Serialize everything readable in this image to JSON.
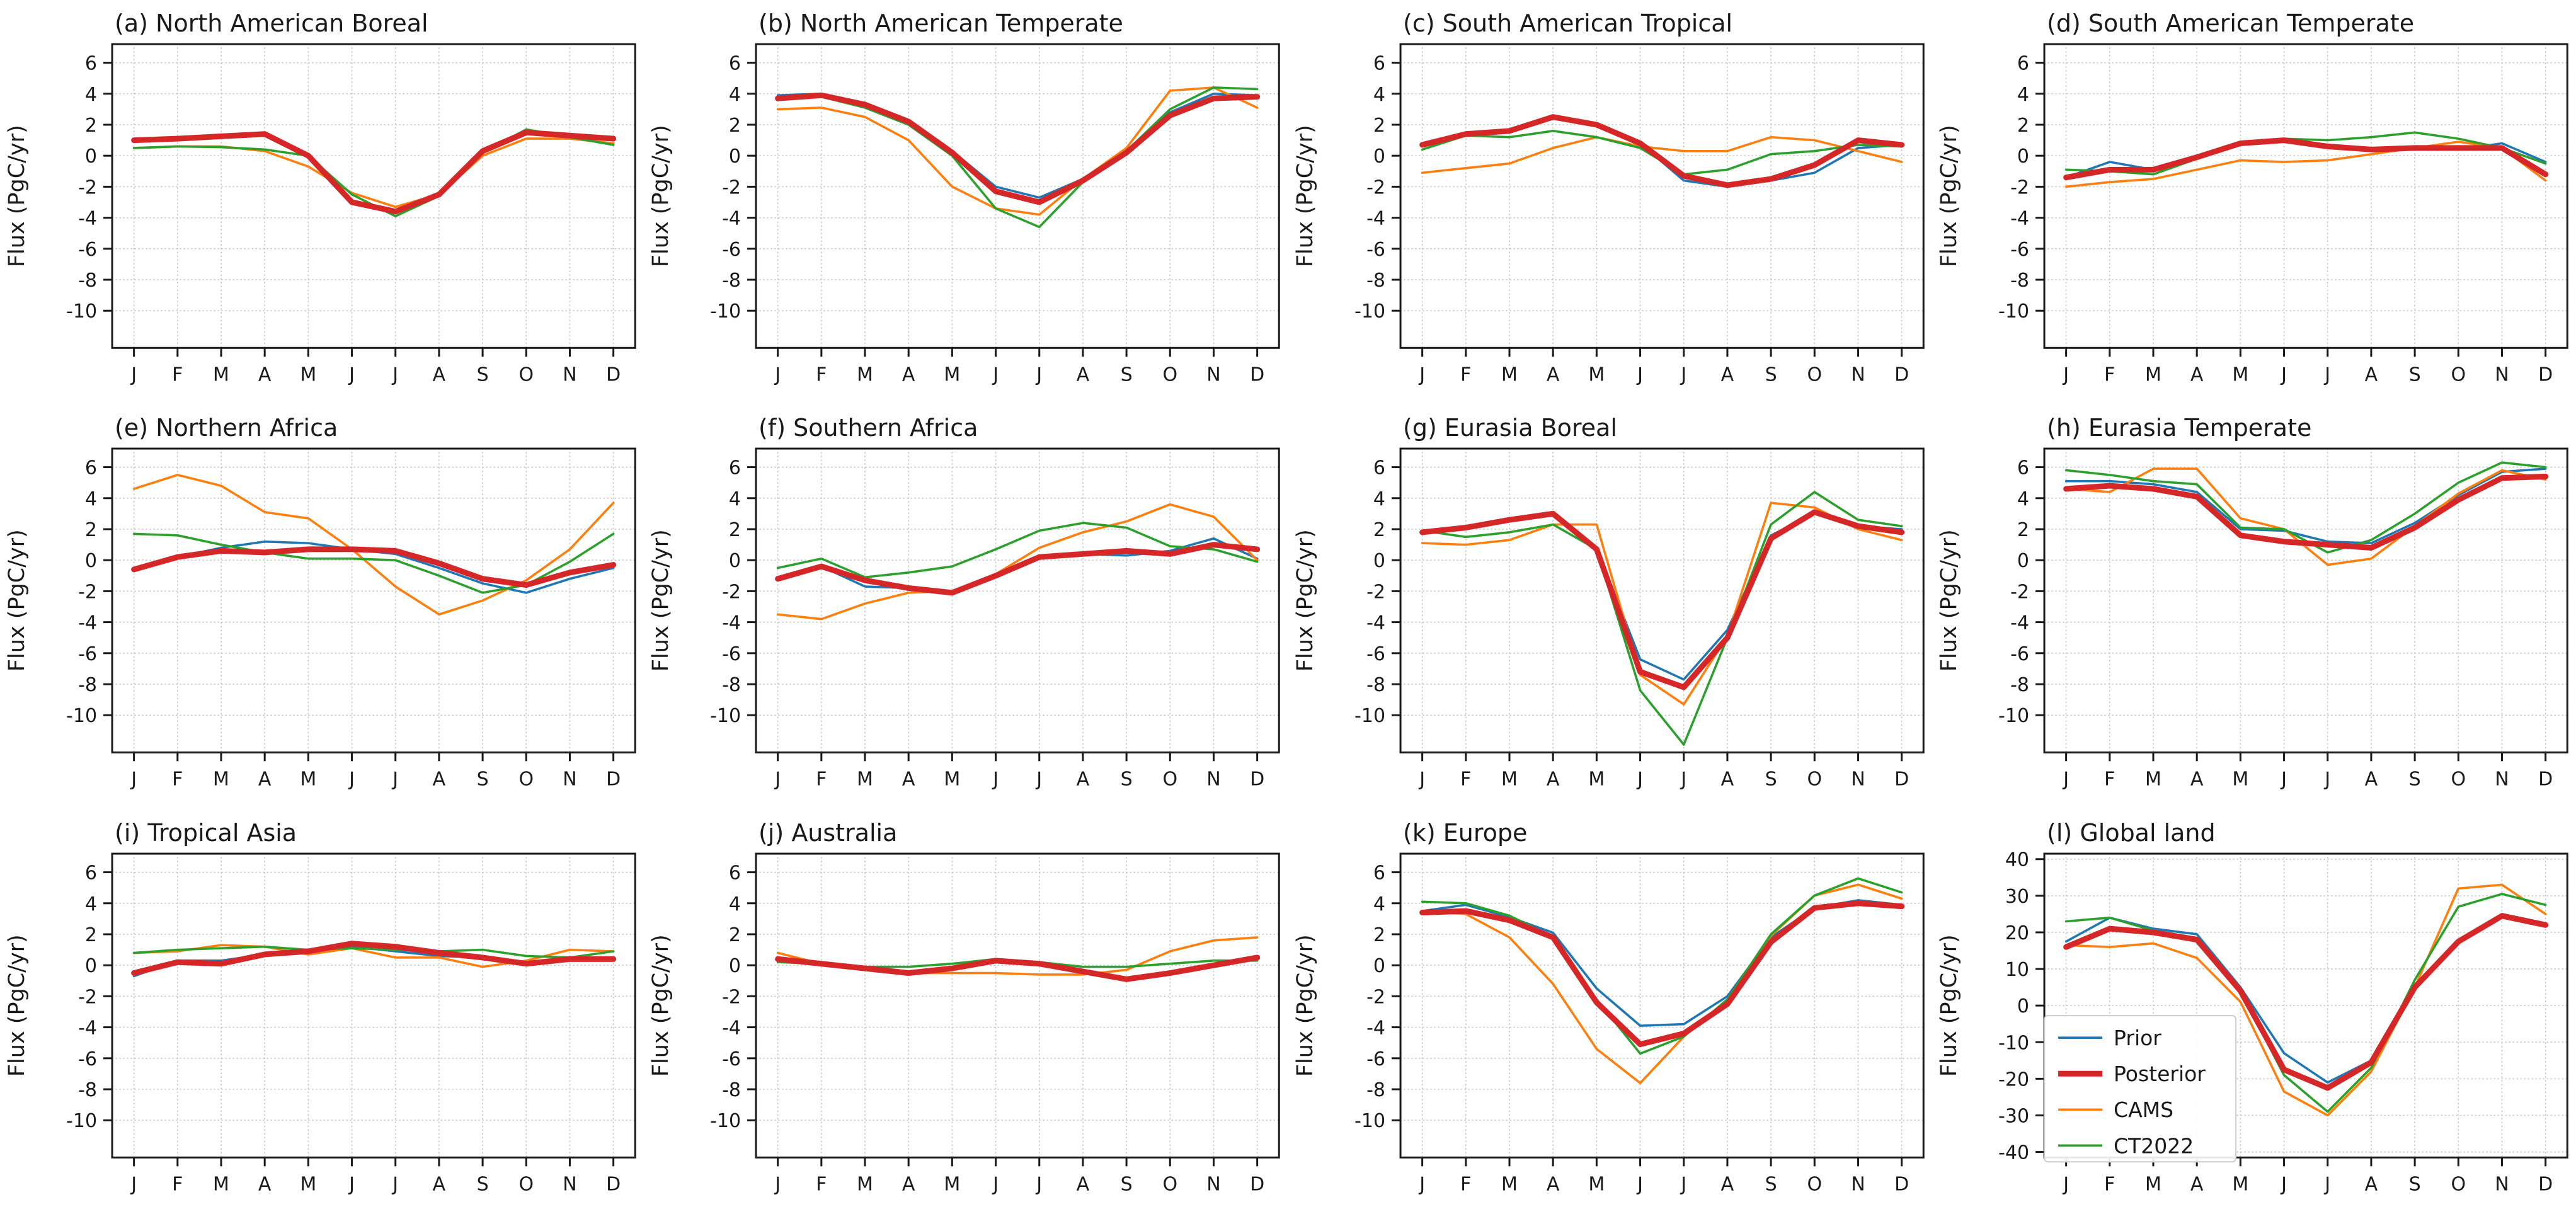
{
  "figure": {
    "ylabel": "Flux (PgC/yr)",
    "categories": [
      "J",
      "F",
      "M",
      "A",
      "M",
      "J",
      "J",
      "A",
      "S",
      "O",
      "N",
      "D"
    ],
    "series_meta": [
      {
        "key": "prior",
        "name": "Prior",
        "color": "#1f77b4",
        "width": 3.6
      },
      {
        "key": "posterior",
        "name": "Posterior",
        "color": "#d62728",
        "width": 9
      },
      {
        "key": "cams",
        "name": "CAMS",
        "color": "#ff7f0e",
        "width": 3.6
      },
      {
        "key": "ct2022",
        "name": "CT2022",
        "color": "#2ca02c",
        "width": 3.6
      }
    ],
    "draw_order": [
      0,
      2,
      3,
      1
    ],
    "axis_color": "#1a1a1a",
    "grid_color": "#c9c9c9",
    "background": "#ffffff",
    "legend": {
      "panel_index": 11,
      "entries": [
        "Prior",
        "Posterior",
        "CAMS",
        "CT2022"
      ]
    }
  },
  "chart_data": [
    {
      "type": "line",
      "title": "(a) North American Boreal",
      "ylabel": "Flux (PgC/yr)",
      "ylim": [
        -12.4,
        7.2
      ],
      "yticks": [
        6,
        4,
        2,
        0,
        -2,
        -4,
        -6,
        -8,
        -10
      ],
      "legend": false,
      "series": [
        {
          "name": "Prior",
          "values": [
            1.0,
            1.1,
            1.2,
            1.35,
            0.1,
            -2.9,
            -3.5,
            -2.5,
            0.3,
            1.5,
            1.3,
            1.1
          ]
        },
        {
          "name": "Posterior",
          "values": [
            1.0,
            1.1,
            1.25,
            1.4,
            0.0,
            -3.0,
            -3.6,
            -2.5,
            0.3,
            1.5,
            1.3,
            1.1
          ]
        },
        {
          "name": "CAMS",
          "values": [
            0.5,
            0.6,
            0.6,
            0.3,
            -0.7,
            -2.4,
            -3.3,
            -2.5,
            0.0,
            1.1,
            1.1,
            0.8
          ]
        },
        {
          "name": "CT2022",
          "values": [
            0.5,
            0.6,
            0.55,
            0.4,
            0.0,
            -2.5,
            -3.9,
            -2.6,
            0.2,
            1.7,
            1.2,
            0.7
          ]
        }
      ]
    },
    {
      "type": "line",
      "title": "(b) North American Temperate",
      "ylabel": "Flux (PgC/yr)",
      "ylim": [
        -12.4,
        7.2
      ],
      "yticks": [
        6,
        4,
        2,
        0,
        -2,
        -4,
        -6,
        -8,
        -10
      ],
      "legend": false,
      "series": [
        {
          "name": "Prior",
          "values": [
            3.9,
            4.0,
            3.3,
            2.2,
            0.3,
            -2.0,
            -2.7,
            -1.5,
            0.3,
            2.8,
            4.0,
            3.9
          ]
        },
        {
          "name": "Posterior",
          "values": [
            3.7,
            3.9,
            3.3,
            2.2,
            0.2,
            -2.3,
            -3.0,
            -1.6,
            0.2,
            2.6,
            3.7,
            3.8
          ]
        },
        {
          "name": "CAMS",
          "values": [
            3.0,
            3.1,
            2.5,
            1.0,
            -2.0,
            -3.4,
            -3.8,
            -1.5,
            0.5,
            4.2,
            4.4,
            3.1
          ]
        },
        {
          "name": "CT2022",
          "values": [
            3.6,
            3.8,
            3.1,
            2.0,
            0.0,
            -3.4,
            -4.6,
            -1.7,
            0.3,
            3.0,
            4.4,
            4.3
          ]
        }
      ]
    },
    {
      "type": "line",
      "title": "(c) South American Tropical",
      "ylabel": "Flux (PgC/yr)",
      "ylim": [
        -12.4,
        7.2
      ],
      "yticks": [
        6,
        4,
        2,
        0,
        -2,
        -4,
        -6,
        -8,
        -10
      ],
      "legend": false,
      "series": [
        {
          "name": "Prior",
          "values": [
            0.6,
            1.4,
            1.5,
            2.4,
            2.0,
            0.8,
            -1.6,
            -2.0,
            -1.6,
            -1.1,
            0.5,
            0.7
          ]
        },
        {
          "name": "Posterior",
          "values": [
            0.7,
            1.4,
            1.6,
            2.5,
            2.0,
            0.8,
            -1.3,
            -1.9,
            -1.5,
            -0.6,
            1.0,
            0.7
          ]
        },
        {
          "name": "CAMS",
          "values": [
            -1.1,
            -0.8,
            -0.5,
            0.5,
            1.2,
            0.6,
            0.3,
            0.3,
            1.2,
            1.0,
            0.3,
            -0.4
          ]
        },
        {
          "name": "CT2022",
          "values": [
            0.4,
            1.3,
            1.2,
            1.6,
            1.2,
            0.5,
            -1.2,
            -0.9,
            0.1,
            0.3,
            0.7,
            0.6
          ]
        }
      ]
    },
    {
      "type": "line",
      "title": "(d) South American Temperate",
      "ylabel": "Flux (PgC/yr)",
      "ylim": [
        -12.4,
        7.2
      ],
      "yticks": [
        6,
        4,
        2,
        0,
        -2,
        -4,
        -6,
        -8,
        -10
      ],
      "legend": false,
      "series": [
        {
          "name": "Prior",
          "values": [
            -1.4,
            -0.4,
            -0.9,
            -0.1,
            0.8,
            1.0,
            0.6,
            0.4,
            0.4,
            0.4,
            0.8,
            -0.4
          ]
        },
        {
          "name": "Posterior",
          "values": [
            -1.4,
            -0.9,
            -0.9,
            -0.1,
            0.8,
            1.0,
            0.6,
            0.4,
            0.5,
            0.5,
            0.5,
            -1.2
          ]
        },
        {
          "name": "CAMS",
          "values": [
            -2.0,
            -1.7,
            -1.5,
            -0.9,
            -0.3,
            -0.4,
            -0.3,
            0.1,
            0.5,
            0.9,
            0.5,
            -1.6
          ]
        },
        {
          "name": "CT2022",
          "values": [
            -0.9,
            -1.0,
            -1.2,
            -0.2,
            0.7,
            1.1,
            1.0,
            1.2,
            1.5,
            1.1,
            0.5,
            -0.5
          ]
        }
      ]
    },
    {
      "type": "line",
      "title": "(e) Northern Africa",
      "ylabel": "Flux (PgC/yr)",
      "ylim": [
        -12.4,
        7.2
      ],
      "yticks": [
        6,
        4,
        2,
        0,
        -2,
        -4,
        -6,
        -8,
        -10
      ],
      "legend": false,
      "series": [
        {
          "name": "Prior",
          "values": [
            -0.6,
            0.2,
            0.8,
            1.2,
            1.1,
            0.7,
            0.4,
            -0.5,
            -1.5,
            -2.1,
            -1.2,
            -0.5
          ]
        },
        {
          "name": "Posterior",
          "values": [
            -0.6,
            0.2,
            0.6,
            0.5,
            0.7,
            0.7,
            0.6,
            -0.2,
            -1.2,
            -1.6,
            -0.8,
            -0.3
          ]
        },
        {
          "name": "CAMS",
          "values": [
            4.6,
            5.5,
            4.8,
            3.1,
            2.7,
            0.7,
            -1.7,
            -3.5,
            -2.6,
            -1.3,
            0.7,
            3.7
          ]
        },
        {
          "name": "CT2022",
          "values": [
            1.7,
            1.6,
            1.0,
            0.5,
            0.1,
            0.1,
            0.0,
            -1.0,
            -2.1,
            -1.6,
            -0.1,
            1.7
          ]
        }
      ]
    },
    {
      "type": "line",
      "title": "(f) Southern Africa",
      "ylabel": "Flux (PgC/yr)",
      "ylim": [
        -12.4,
        7.2
      ],
      "yticks": [
        6,
        4,
        2,
        0,
        -2,
        -4,
        -6,
        -8,
        -10
      ],
      "legend": false,
      "series": [
        {
          "name": "Prior",
          "values": [
            -1.2,
            -0.4,
            -1.7,
            -1.8,
            -2.2,
            -1.0,
            0.2,
            0.4,
            0.3,
            0.6,
            1.4,
            0.1
          ]
        },
        {
          "name": "Posterior",
          "values": [
            -1.2,
            -0.4,
            -1.3,
            -1.8,
            -2.1,
            -1.0,
            0.2,
            0.4,
            0.6,
            0.4,
            1.0,
            0.7
          ]
        },
        {
          "name": "CAMS",
          "values": [
            -3.5,
            -3.8,
            -2.8,
            -2.1,
            -2.0,
            -0.9,
            0.8,
            1.8,
            2.5,
            3.6,
            2.8,
            0.0
          ]
        },
        {
          "name": "CT2022",
          "values": [
            -0.5,
            0.1,
            -1.1,
            -0.8,
            -0.4,
            0.7,
            1.9,
            2.4,
            2.1,
            0.9,
            0.7,
            -0.1
          ]
        }
      ]
    },
    {
      "type": "line",
      "title": "(g) Eurasia Boreal",
      "ylabel": "Flux (PgC/yr)",
      "ylim": [
        -12.4,
        7.2
      ],
      "yticks": [
        6,
        4,
        2,
        0,
        -2,
        -4,
        -6,
        -8,
        -10
      ],
      "legend": false,
      "series": [
        {
          "name": "Prior",
          "values": [
            1.8,
            2.2,
            2.7,
            3.0,
            0.8,
            -6.4,
            -7.7,
            -4.5,
            1.6,
            3.0,
            2.2,
            2.0
          ]
        },
        {
          "name": "Posterior",
          "values": [
            1.8,
            2.1,
            2.6,
            3.0,
            0.7,
            -7.2,
            -8.2,
            -5.0,
            1.4,
            3.1,
            2.2,
            1.8
          ]
        },
        {
          "name": "CAMS",
          "values": [
            1.1,
            1.0,
            1.3,
            2.3,
            2.3,
            -7.4,
            -9.3,
            -4.9,
            3.7,
            3.4,
            2.0,
            1.3
          ]
        },
        {
          "name": "CT2022",
          "values": [
            1.9,
            1.5,
            1.8,
            2.3,
            0.7,
            -8.4,
            -11.9,
            -5.0,
            2.3,
            4.4,
            2.6,
            2.2
          ]
        }
      ]
    },
    {
      "type": "line",
      "title": "(h) Eurasia Temperate",
      "ylabel": "Flux (PgC/yr)",
      "ylim": [
        -12.4,
        7.2
      ],
      "yticks": [
        6,
        4,
        2,
        0,
        -2,
        -4,
        -6,
        -8,
        -10
      ],
      "legend": false,
      "series": [
        {
          "name": "Prior",
          "values": [
            5.1,
            5.1,
            4.9,
            4.4,
            2.0,
            1.9,
            1.2,
            1.1,
            2.4,
            4.2,
            5.7,
            5.9
          ]
        },
        {
          "name": "Posterior",
          "values": [
            4.6,
            4.8,
            4.6,
            4.1,
            1.6,
            1.2,
            1.0,
            0.8,
            2.1,
            3.9,
            5.3,
            5.4
          ]
        },
        {
          "name": "CAMS",
          "values": [
            4.6,
            4.4,
            5.9,
            5.9,
            2.7,
            2.0,
            -0.3,
            0.1,
            2.2,
            4.3,
            5.8,
            5.2
          ]
        },
        {
          "name": "CT2022",
          "values": [
            5.8,
            5.5,
            5.1,
            4.9,
            2.1,
            2.0,
            0.5,
            1.3,
            3.0,
            5.0,
            6.3,
            6.0
          ]
        }
      ]
    },
    {
      "type": "line",
      "title": "(i) Tropical Asia",
      "ylabel": "Flux (PgC/yr)",
      "ylim": [
        -12.4,
        7.2
      ],
      "yticks": [
        6,
        4,
        2,
        0,
        -2,
        -4,
        -6,
        -8,
        -10
      ],
      "legend": false,
      "series": [
        {
          "name": "Prior",
          "values": [
            -0.7,
            0.3,
            0.3,
            0.7,
            1.0,
            1.2,
            0.9,
            0.6,
            0.5,
            0.2,
            0.4,
            0.4
          ]
        },
        {
          "name": "Posterior",
          "values": [
            -0.5,
            0.2,
            0.1,
            0.7,
            0.9,
            1.4,
            1.2,
            0.8,
            0.5,
            0.1,
            0.4,
            0.4
          ]
        },
        {
          "name": "CAMS",
          "values": [
            0.8,
            0.9,
            1.3,
            1.2,
            0.7,
            1.1,
            0.5,
            0.5,
            -0.1,
            0.3,
            1.0,
            0.9
          ]
        },
        {
          "name": "CT2022",
          "values": [
            0.8,
            1.0,
            1.1,
            1.2,
            1.0,
            1.1,
            1.0,
            0.9,
            1.0,
            0.6,
            0.5,
            0.9
          ]
        }
      ]
    },
    {
      "type": "line",
      "title": "(j) Australia",
      "ylabel": "Flux (PgC/yr)",
      "ylim": [
        -12.4,
        7.2
      ],
      "yticks": [
        6,
        4,
        2,
        0,
        -2,
        -4,
        -6,
        -8,
        -10
      ],
      "legend": false,
      "series": [
        {
          "name": "Prior",
          "values": [
            0.3,
            0.1,
            -0.2,
            -0.5,
            -0.2,
            0.2,
            0.1,
            -0.4,
            -0.8,
            -0.5,
            0.0,
            0.4
          ]
        },
        {
          "name": "Posterior",
          "values": [
            0.4,
            0.1,
            -0.2,
            -0.5,
            -0.2,
            0.3,
            0.1,
            -0.4,
            -0.9,
            -0.5,
            0.0,
            0.5
          ]
        },
        {
          "name": "CAMS",
          "values": [
            0.8,
            0.1,
            -0.3,
            -0.5,
            -0.5,
            -0.5,
            -0.6,
            -0.6,
            -0.3,
            0.9,
            1.6,
            1.8
          ]
        },
        {
          "name": "CT2022",
          "values": [
            0.2,
            0.1,
            -0.1,
            -0.1,
            0.1,
            0.4,
            0.2,
            -0.1,
            -0.1,
            0.1,
            0.3,
            0.3
          ]
        }
      ]
    },
    {
      "type": "line",
      "title": "(k) Europe",
      "ylabel": "Flux (PgC/yr)",
      "ylim": [
        -12.4,
        7.2
      ],
      "yticks": [
        6,
        4,
        2,
        0,
        -2,
        -4,
        -6,
        -8,
        -10
      ],
      "legend": false,
      "series": [
        {
          "name": "Prior",
          "values": [
            3.5,
            3.9,
            3.1,
            2.1,
            -1.5,
            -3.9,
            -3.8,
            -2.0,
            1.8,
            3.7,
            4.2,
            3.9
          ]
        },
        {
          "name": "Posterior",
          "values": [
            3.4,
            3.5,
            2.9,
            1.8,
            -2.4,
            -5.1,
            -4.4,
            -2.5,
            1.5,
            3.7,
            4.0,
            3.8
          ]
        },
        {
          "name": "CAMS",
          "values": [
            3.5,
            3.3,
            1.8,
            -1.2,
            -5.4,
            -7.6,
            -4.6,
            -2.2,
            1.9,
            4.5,
            5.2,
            4.3
          ]
        },
        {
          "name": "CT2022",
          "values": [
            4.1,
            4.0,
            3.2,
            1.8,
            -2.2,
            -5.7,
            -4.6,
            -2.2,
            2.0,
            4.5,
            5.6,
            4.7
          ]
        }
      ]
    },
    {
      "type": "line",
      "title": "(l) Global land",
      "ylabel": "Flux (PgC/yr)",
      "ylim": [
        -41.5,
        41.5
      ],
      "yticks": [
        40,
        30,
        20,
        10,
        0,
        -10,
        -20,
        -30,
        -40
      ],
      "legend": true,
      "series": [
        {
          "name": "Prior",
          "values": [
            17.5,
            24.0,
            21.0,
            19.5,
            5.0,
            -13.0,
            -21.0,
            -15.0,
            5.0,
            17.5,
            25.0,
            22.5
          ]
        },
        {
          "name": "Posterior",
          "values": [
            16.0,
            21.0,
            20.0,
            18.0,
            4.0,
            -17.5,
            -22.5,
            -15.5,
            5.0,
            17.5,
            24.5,
            22.0
          ]
        },
        {
          "name": "CAMS",
          "values": [
            16.5,
            16.0,
            17.0,
            13.0,
            1.0,
            -23.5,
            -30.0,
            -18.0,
            5.0,
            32.0,
            33.0,
            25.0
          ]
        },
        {
          "name": "CT2022",
          "values": [
            23.0,
            24.0,
            20.5,
            18.5,
            4.0,
            -19.0,
            -29.0,
            -17.0,
            7.0,
            27.0,
            30.5,
            27.5
          ]
        }
      ]
    }
  ]
}
